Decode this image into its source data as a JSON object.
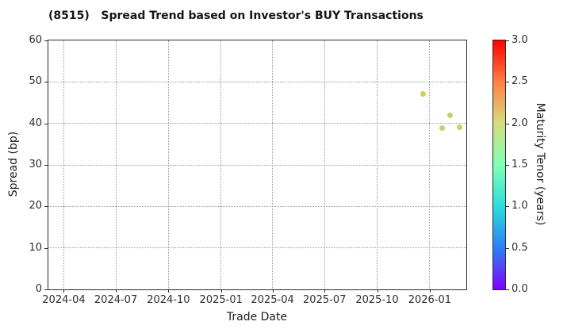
{
  "chart_data": {
    "type": "scatter",
    "title": "(8515)   Spread Trend based on Investor's BUY Transactions",
    "xlabel": "Trade Date",
    "ylabel": "Spread (bp)",
    "grid": {
      "style": "dotted",
      "color": "#9b9b9b"
    },
    "x_axis": {
      "min": "2024-03-05",
      "max": "2026-03-06",
      "ticks": [
        "2024-04",
        "2024-07",
        "2024-10",
        "2025-01",
        "2025-04",
        "2025-07",
        "2025-10",
        "2026-01"
      ]
    },
    "y_axis": {
      "min": 0,
      "max": 60,
      "ticks": [
        0,
        10,
        20,
        30,
        40,
        50,
        60
      ]
    },
    "points": [
      {
        "date": "2025-12-20",
        "spread": 47.1,
        "maturity_tenor": 2.0,
        "color": "#d8c95e"
      },
      {
        "date": "2026-01-23",
        "spread": 38.9,
        "maturity_tenor": 1.8,
        "color": "#b9d76b"
      },
      {
        "date": "2026-02-05",
        "spread": 42.0,
        "maturity_tenor": 1.8,
        "color": "#b9d76b"
      },
      {
        "date": "2026-02-22",
        "spread": 39.1,
        "maturity_tenor": 1.8,
        "color": "#b9d76b"
      }
    ],
    "colorbar": {
      "label": "Maturity Tenor (years)",
      "min": 0,
      "max": 3,
      "ticks": [
        "0.0",
        "0.5",
        "1.0",
        "1.5",
        "2.0",
        "2.5",
        "3.0"
      ],
      "gradient_stops": [
        {
          "value": 0.0,
          "color": "#8000ff"
        },
        {
          "value": 0.5,
          "color": "#2b80f6"
        },
        {
          "value": 1.0,
          "color": "#2bdddd"
        },
        {
          "value": 1.5,
          "color": "#80ffb4"
        },
        {
          "value": 2.0,
          "color": "#d5dd80"
        },
        {
          "value": 2.5,
          "color": "#ff8042"
        },
        {
          "value": 3.0,
          "color": "#ff0000"
        }
      ]
    }
  }
}
